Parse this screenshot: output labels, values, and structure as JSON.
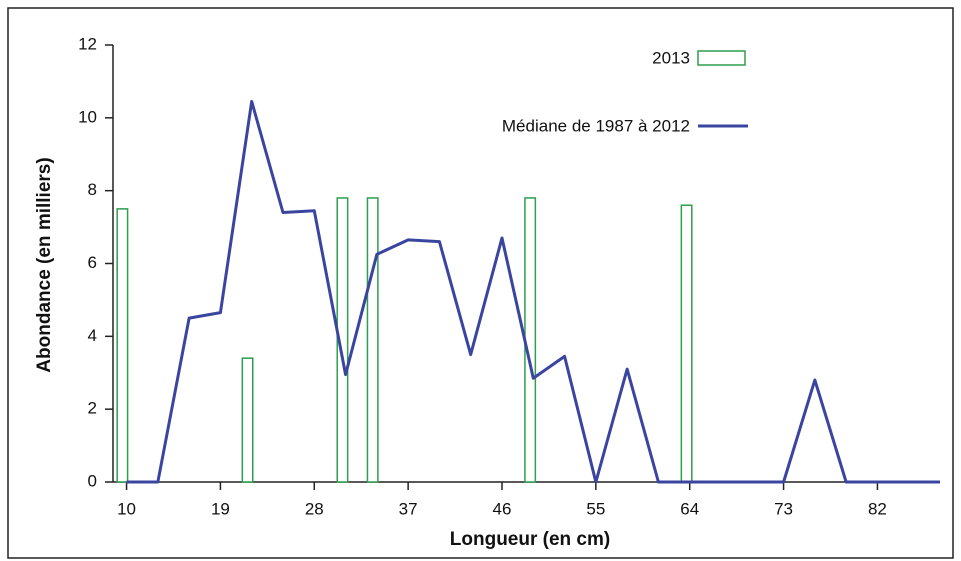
{
  "chart_data": {
    "type": "combo",
    "xlabel": "Longueur (en cm)",
    "ylabel": "Abondance (en milliers)",
    "xlim": [
      8.7,
      88
    ],
    "xticks": [
      10,
      19,
      28,
      37,
      46,
      55,
      64,
      73,
      82
    ],
    "ylim": [
      0,
      12
    ],
    "yticks": [
      0,
      2,
      4,
      6,
      8,
      10,
      12
    ],
    "series": [
      {
        "name": "2013",
        "type": "bar",
        "color": "#2e9e4f",
        "x": [
          9.6,
          21.6,
          30.7,
          33.6,
          48.7,
          63.7
        ],
        "values": [
          7.5,
          3.4,
          7.8,
          7.8,
          7.8,
          7.6
        ]
      },
      {
        "name": "Médiane de 1987 à 2012",
        "type": "line",
        "color": "#3a45a0",
        "x": [
          10,
          13,
          16,
          19,
          22,
          25,
          28,
          31,
          34,
          37,
          40,
          43,
          46,
          49,
          52,
          55,
          58,
          61,
          64,
          67,
          70,
          73,
          76,
          79,
          82,
          85,
          88
        ],
        "values": [
          0,
          0,
          4.5,
          4.65,
          10.45,
          7.4,
          7.45,
          2.95,
          6.25,
          6.65,
          6.6,
          3.5,
          6.7,
          2.85,
          3.45,
          0,
          3.1,
          0,
          0,
          0,
          0,
          0,
          2.8,
          0,
          0,
          0,
          0
        ]
      }
    ]
  }
}
